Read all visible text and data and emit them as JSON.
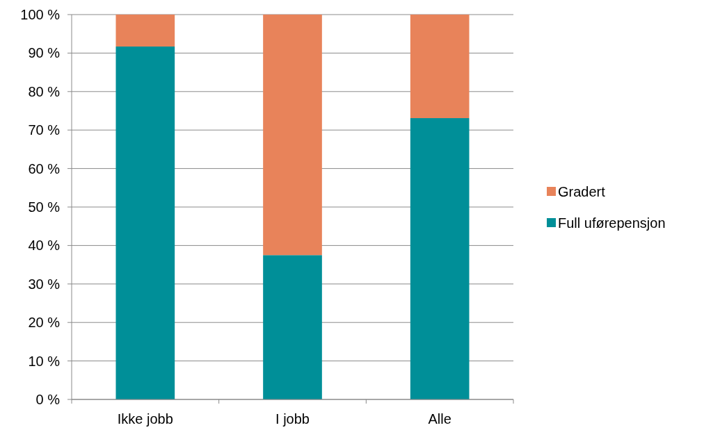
{
  "chart_data": {
    "type": "bar",
    "stacked": true,
    "categories": [
      "Ikke jobb",
      "I jobb",
      "Alle"
    ],
    "series": [
      {
        "name": "Full uførepensjon",
        "color": "#008f98",
        "values": [
          91.7,
          37.5,
          73.1
        ]
      },
      {
        "name": "Gradert",
        "color": "#e8835a",
        "values": [
          8.3,
          62.5,
          26.9
        ]
      }
    ],
    "ylim": [
      0,
      100
    ],
    "yticks": [
      {
        "value": 0,
        "label": "0 %"
      },
      {
        "value": 10,
        "label": "10 %"
      },
      {
        "value": 20,
        "label": "20 %"
      },
      {
        "value": 30,
        "label": "30 %"
      },
      {
        "value": 40,
        "label": "40 %"
      },
      {
        "value": 50,
        "label": "50 %"
      },
      {
        "value": 60,
        "label": "60 %"
      },
      {
        "value": 70,
        "label": "70 %"
      },
      {
        "value": 80,
        "label": "80 %"
      },
      {
        "value": 90,
        "label": "90 %"
      },
      {
        "value": 100,
        "label": "100 %"
      }
    ],
    "grid": "y",
    "legend": "right"
  }
}
